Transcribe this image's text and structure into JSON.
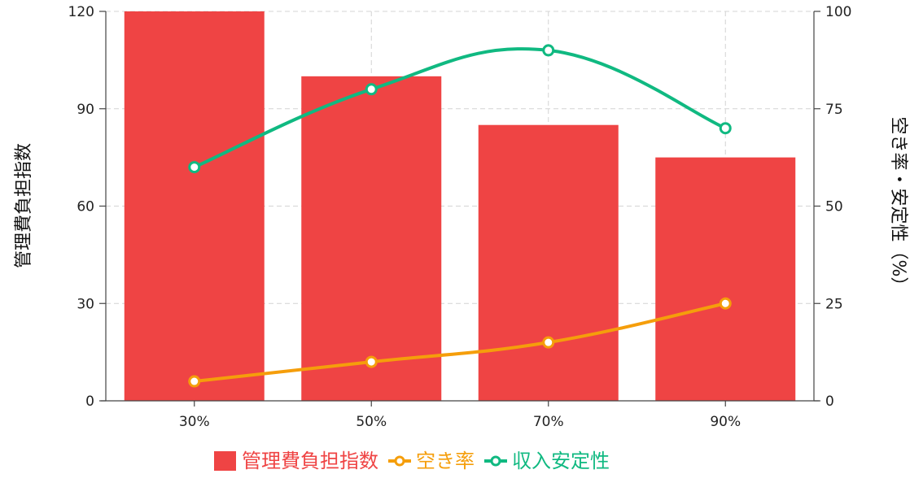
{
  "chart_data": {
    "type": "bar",
    "categories": [
      "30%",
      "50%",
      "70%",
      "90%"
    ],
    "ylabel_left": "管理費負担指数",
    "ylabel_right": "空き率・安定性（%）",
    "ylim_left": [
      0,
      120
    ],
    "ylim_right": [
      0,
      100
    ],
    "yticks_left": [
      "0",
      "30",
      "60",
      "90",
      "120"
    ],
    "yticks_right": [
      "0",
      "25",
      "50",
      "75",
      "100"
    ],
    "grid": true,
    "legend_position": "bottom",
    "series": [
      {
        "name": "管理費負担指数",
        "kind": "bar",
        "axis": "left",
        "color": "#ef4444",
        "values": [
          120,
          100,
          85,
          75
        ]
      },
      {
        "name": "空き率",
        "kind": "line",
        "axis": "right",
        "color": "#f59e0b",
        "values": [
          5,
          10,
          15,
          25
        ]
      },
      {
        "name": "収入安定性",
        "kind": "line",
        "axis": "right",
        "color": "#10b981",
        "values": [
          60,
          80,
          90,
          70
        ]
      }
    ]
  }
}
